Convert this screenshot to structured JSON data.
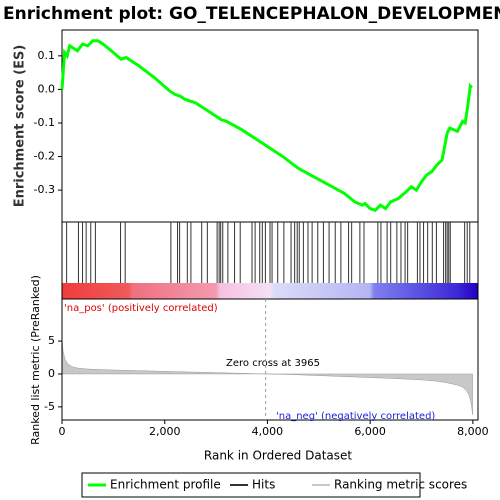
{
  "chart_data": [
    {
      "type": "line",
      "title": "Enrichment plot: GO_TELENCEPHALON_DEVELOPMENT",
      "ylabel": "Enrichment score (ES)",
      "x": [
        0,
        50,
        100,
        150,
        300,
        400,
        500,
        600,
        700,
        800,
        1000,
        1150,
        1250,
        1500,
        1800,
        2100,
        2200,
        2300,
        2400,
        2600,
        2800,
        3000,
        3100,
        3200,
        3500,
        3800,
        4000,
        4300,
        4600,
        4900,
        5200,
        5500,
        5700,
        5850,
        5900,
        6000,
        6100,
        6200,
        6300,
        6400,
        6550,
        6700,
        6800,
        6900,
        7000,
        7100,
        7200,
        7300,
        7400,
        7450,
        7500,
        7550,
        7700,
        7800,
        7850,
        7900,
        7950,
        7980
      ],
      "series": [
        {
          "name": "Enrichment profile",
          "color": "#00ff00",
          "values": [
            0.0,
            0.11,
            0.1,
            0.13,
            0.115,
            0.135,
            0.13,
            0.145,
            0.145,
            0.135,
            0.11,
            0.09,
            0.095,
            0.07,
            0.035,
            -0.005,
            -0.015,
            -0.02,
            -0.03,
            -0.04,
            -0.06,
            -0.08,
            -0.09,
            -0.095,
            -0.12,
            -0.15,
            -0.17,
            -0.2,
            -0.235,
            -0.26,
            -0.285,
            -0.31,
            -0.335,
            -0.345,
            -0.34,
            -0.355,
            -0.36,
            -0.345,
            -0.355,
            -0.335,
            -0.325,
            -0.305,
            -0.29,
            -0.3,
            -0.275,
            -0.255,
            -0.245,
            -0.225,
            -0.21,
            -0.17,
            -0.13,
            -0.115,
            -0.125,
            -0.095,
            -0.1,
            -0.05,
            0.01,
            0.005
          ]
        }
      ],
      "xlim": [
        0,
        8100
      ],
      "ylim": [
        -0.395,
        0.177
      ],
      "yticks": [
        0.1,
        {
          "value": 0,
          "label": "0.0"
        },
        -0.1,
        -0.2,
        -0.3
      ]
    },
    {
      "type": "rug",
      "xlim": [
        0,
        8100
      ],
      "series": [
        {
          "name": "Hits",
          "color": "#333333",
          "values": [
            90,
            320,
            400,
            470,
            560,
            650,
            1140,
            1230,
            2120,
            2250,
            2290,
            2440,
            2510,
            2720,
            2830,
            3020,
            3060,
            3090,
            3130,
            3230,
            3360,
            3470,
            3700,
            3760,
            3850,
            3900,
            3960,
            4050,
            4090,
            4200,
            4320,
            4460,
            4530,
            4580,
            4620,
            4700,
            4790,
            4870,
            4980,
            5090,
            5200,
            5320,
            5430,
            5580,
            5640,
            5800,
            5880,
            6150,
            6210,
            6330,
            6400,
            6520,
            6600,
            6680,
            6730,
            6920,
            6970,
            7040,
            7120,
            7210,
            7290,
            7430,
            7470,
            7500,
            7530,
            7560,
            7840,
            7890,
            7940
          ]
        }
      ]
    },
    {
      "type": "area",
      "ylabel": "Ranked list metric (PreRanked)",
      "xlabel": "Rank in Ordered Dataset",
      "x": [
        0,
        20,
        60,
        120,
        200,
        300,
        500,
        1000,
        1500,
        2000,
        2500,
        3000,
        3500,
        3965,
        4500,
        5000,
        5500,
        6000,
        6500,
        7000,
        7300,
        7500,
        7700,
        7800,
        7880,
        7930,
        7960,
        7980,
        7995
      ],
      "series": [
        {
          "name": "Ranking metric scores",
          "color": "#c8c8c8",
          "values": [
            5.5,
            3.5,
            2.2,
            1.5,
            1.1,
            0.9,
            0.75,
            0.6,
            0.5,
            0.4,
            0.3,
            0.2,
            0.1,
            0,
            -0.1,
            -0.25,
            -0.4,
            -0.55,
            -0.7,
            -0.9,
            -1.1,
            -1.35,
            -1.7,
            -2.0,
            -2.6,
            -3.3,
            -4.2,
            -5.2,
            -6.2
          ]
        }
      ],
      "xlim": [
        0,
        8100
      ],
      "ylim": [
        -7,
        11.4
      ],
      "yticks": [
        5,
        0,
        -5
      ],
      "xticks": [
        0,
        {
          "value": 2000,
          "label": "2,000"
        },
        {
          "value": 4000,
          "label": "4,000"
        },
        {
          "value": 6000,
          "label": "6,000"
        },
        {
          "value": 8000,
          "label": "8,000"
        }
      ],
      "zero_cross": 3965,
      "zero_cross_label": "Zero cross at 3965",
      "pos_label": "'na_pos' (positively correlated)",
      "neg_label": "'na_neg' (negatively correlated)"
    }
  ]
}
